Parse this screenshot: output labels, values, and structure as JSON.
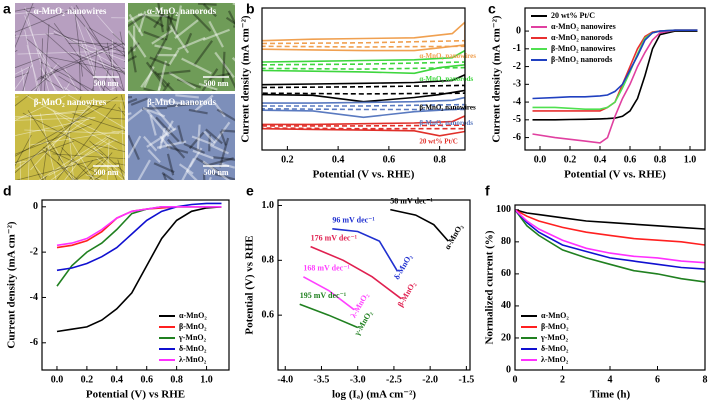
{
  "image_panel": {
    "panel_label": "a",
    "tiles": [
      {
        "label": "α-MnO₂ nanowires",
        "scale_bar": "500 nm",
        "color": "#b79fc0",
        "texture": "wires"
      },
      {
        "label": "α-MnO₂ nanorods",
        "scale_bar": "500 nm",
        "color": "#6f9c58",
        "texture": "rods"
      },
      {
        "label": "β-MnO₂ nanowires",
        "scale_bar": "500 nm",
        "color": "#c9bb45",
        "texture": "wires"
      },
      {
        "label": "β-MnO₂ nanorods",
        "scale_bar": "500 nm",
        "color": "#7d8fba",
        "texture": "rods"
      }
    ]
  },
  "chart_data": [
    {
      "type": "line",
      "panel_label": "b",
      "x_label": "Potential (V vs. RHE)",
      "y_label": "Current density (mA cm⁻²)",
      "xlim": [
        0.1,
        0.9
      ],
      "xticks": [
        0.2,
        0.4,
        0.6,
        0.8
      ],
      "ylim": [
        0,
        10
      ],
      "legend": "inline",
      "series": [
        {
          "name": "α-MnO₂ nanowires",
          "color": "#f0a050",
          "x": [
            0.1,
            0.3,
            0.5,
            0.7,
            0.85,
            0.9,
            0.9,
            0.8,
            0.7,
            0.5,
            0.3,
            0.1
          ],
          "values": [
            7.7,
            7.8,
            7.85,
            7.9,
            8.2,
            9.0,
            7.4,
            7.2,
            7.0,
            7.0,
            7.05,
            7.1
          ]
        },
        {
          "color": "#f0a050",
          "dashed": true,
          "x": [
            0.1,
            0.5,
            0.9,
            0.9,
            0.5,
            0.1
          ],
          "values": [
            7.5,
            7.55,
            7.7,
            7.3,
            7.25,
            7.3
          ]
        },
        {
          "name": "α-MnO₂ nanorods",
          "color": "#3ed63e",
          "x": [
            0.1,
            0.3,
            0.5,
            0.7,
            0.85,
            0.9,
            0.9,
            0.8,
            0.7,
            0.5,
            0.3,
            0.1
          ],
          "values": [
            6.2,
            6.25,
            6.3,
            6.35,
            6.5,
            7.0,
            6.0,
            5.8,
            5.4,
            5.5,
            5.55,
            5.6
          ]
        },
        {
          "color": "#3ed63e",
          "dashed": true,
          "x": [
            0.1,
            0.5,
            0.9,
            0.9,
            0.5,
            0.1
          ],
          "values": [
            6.0,
            6.05,
            6.2,
            5.8,
            5.7,
            5.75
          ]
        },
        {
          "name": "β-MnO₂ nanowires",
          "color": "#000000",
          "x": [
            0.1,
            0.3,
            0.5,
            0.7,
            0.85,
            0.9,
            0.9,
            0.8,
            0.7,
            0.5,
            0.3,
            0.1
          ],
          "values": [
            4.6,
            4.65,
            4.7,
            4.75,
            4.9,
            5.3,
            4.2,
            3.9,
            3.7,
            3.4,
            3.85,
            3.9
          ]
        },
        {
          "color": "#000000",
          "dashed": true,
          "x": [
            0.1,
            0.5,
            0.9,
            0.9,
            0.5,
            0.1
          ],
          "values": [
            4.4,
            4.45,
            4.55,
            4.0,
            3.95,
            4.0
          ]
        },
        {
          "name": "β-MnO₂ nanorods",
          "color": "#5a7ac0",
          "x": [
            0.1,
            0.3,
            0.5,
            0.7,
            0.85,
            0.9,
            0.9,
            0.8,
            0.7,
            0.5,
            0.3,
            0.1
          ],
          "values": [
            3.3,
            3.3,
            3.35,
            3.4,
            3.5,
            3.7,
            2.9,
            2.8,
            2.7,
            2.3,
            2.75,
            2.8
          ]
        },
        {
          "color": "#5a7ac0",
          "dashed": true,
          "x": [
            0.1,
            0.5,
            0.9,
            0.9,
            0.5,
            0.1
          ],
          "values": [
            3.1,
            3.1,
            3.2,
            2.85,
            2.85,
            2.9
          ]
        },
        {
          "name": "20 wt% Pt/C",
          "color": "#e0302a",
          "x": [
            0.1,
            0.3,
            0.5,
            0.7,
            0.85,
            0.9,
            0.9,
            0.8,
            0.7,
            0.5,
            0.3,
            0.1
          ],
          "values": [
            1.8,
            1.8,
            1.85,
            1.9,
            2.0,
            2.4,
            1.3,
            1.0,
            1.35,
            1.4,
            1.45,
            1.5
          ]
        },
        {
          "color": "#e0302a",
          "dashed": true,
          "x": [
            0.1,
            0.5,
            0.9,
            0.9,
            0.5,
            0.1
          ],
          "values": [
            1.7,
            1.7,
            1.75,
            1.5,
            1.5,
            1.55
          ]
        }
      ]
    },
    {
      "type": "line",
      "panel_label": "c",
      "x_label": "Potential (V vs. RHE)",
      "y_label": "Current density (mA cm⁻²)",
      "xlim": [
        -0.1,
        1.1
      ],
      "xticks": [
        {
          "value": 0,
          "label": "0.0"
        },
        0.2,
        0.4,
        0.6,
        0.8,
        {
          "value": 1,
          "label": "1.0"
        }
      ],
      "ylim": [
        -6.7,
        1.3
      ],
      "yticks": [
        -6,
        -5,
        -4,
        -3,
        -2,
        -1,
        0
      ],
      "legend": "upper left",
      "x": [
        -0.05,
        0.1,
        0.2,
        0.3,
        0.4,
        0.45,
        0.5,
        0.55,
        0.6,
        0.65,
        0.7,
        0.75,
        0.8,
        0.9,
        1.05
      ],
      "series": [
        {
          "name": "20 wt% Pt/C",
          "color": "#000000",
          "values": [
            -5.0,
            -5.0,
            -4.98,
            -4.97,
            -4.95,
            -4.93,
            -4.9,
            -4.8,
            -4.5,
            -3.8,
            -2.5,
            -1.0,
            -0.2,
            0,
            0
          ]
        },
        {
          "name": "α-MnO₂ nanowires",
          "color": "#e040a0",
          "values": [
            -5.8,
            -6.0,
            -6.1,
            -6.2,
            -6.3,
            -6.0,
            -4.8,
            -3.8,
            -3.0,
            -2.0,
            -1.2,
            -0.5,
            -0.1,
            0.05,
            0.05
          ]
        },
        {
          "name": "α-MnO₂ nanorods",
          "color": "#e83030",
          "values": [
            -4.5,
            -4.5,
            -4.5,
            -4.5,
            -4.5,
            -4.3,
            -4.0,
            -3.0,
            -2.0,
            -1.0,
            -0.3,
            -0.05,
            0,
            0.05,
            0.05
          ]
        },
        {
          "name": "β-MnO₂ nanowires",
          "color": "#50e050",
          "values": [
            -4.3,
            -4.3,
            -4.35,
            -4.4,
            -4.4,
            -4.3,
            -4.0,
            -3.2,
            -2.3,
            -1.3,
            -0.4,
            -0.1,
            0,
            0.05,
            0.05
          ]
        },
        {
          "name": "β-MnO₂ nanorods",
          "color": "#2040c0",
          "values": [
            -3.8,
            -3.75,
            -3.7,
            -3.7,
            -3.65,
            -3.6,
            -3.4,
            -3.0,
            -2.2,
            -1.4,
            -0.5,
            -0.1,
            0,
            0.05,
            0.05
          ]
        }
      ]
    },
    {
      "type": "line",
      "panel_label": "d",
      "x_label": "Potential (V) vs RHE",
      "y_label": "Current density (mA cm⁻²)",
      "xlim": [
        -0.1,
        1.15
      ],
      "xticks": [
        {
          "value": 0,
          "label": "0.0"
        },
        0.2,
        0.4,
        0.6,
        0.8,
        {
          "value": 1,
          "label": "1.0"
        }
      ],
      "ylim": [
        -7.2,
        0.3
      ],
      "yticks": [
        -6,
        -4,
        -2,
        0
      ],
      "legend": "lower right",
      "x": [
        0,
        0.1,
        0.2,
        0.3,
        0.4,
        0.5,
        0.6,
        0.7,
        0.8,
        0.9,
        1.0,
        1.1
      ],
      "series": [
        {
          "name": "α-MnO₂",
          "color": "#000000",
          "values": [
            -5.5,
            -5.4,
            -5.3,
            -5.0,
            -4.5,
            -3.8,
            -2.6,
            -1.4,
            -0.6,
            -0.2,
            -0.05,
            0
          ]
        },
        {
          "name": "β-MnO₂",
          "color": "#ff2020",
          "values": [
            -1.8,
            -1.7,
            -1.5,
            -1.1,
            -0.5,
            -0.2,
            -0.1,
            -0.05,
            0,
            0,
            0,
            0
          ]
        },
        {
          "name": "γ-MnO₂",
          "color": "#208020",
          "values": [
            -3.5,
            -2.6,
            -2.0,
            -1.6,
            -1.0,
            -0.3,
            -0.1,
            0,
            0,
            0,
            0,
            0
          ]
        },
        {
          "name": "δ-MnO₂",
          "color": "#1010d0",
          "values": [
            -2.8,
            -2.7,
            -2.5,
            -2.2,
            -1.8,
            -1.2,
            -0.6,
            -0.2,
            0,
            0.1,
            0.15,
            0.15
          ]
        },
        {
          "name": "λ-MnO₂",
          "color": "#ff30ff",
          "values": [
            -1.7,
            -1.6,
            -1.4,
            -1.0,
            -0.5,
            -0.2,
            -0.1,
            0,
            0,
            0,
            0,
            0
          ]
        }
      ]
    },
    {
      "type": "line",
      "panel_label": "e",
      "x_label": "log (Iₐ) (mA cm⁻²)",
      "y_label": "Potential (V) vs RHE",
      "xlim": [
        -4.1,
        -1.45
      ],
      "xticks": [
        {
          "value": -4,
          "label": "-4.0"
        },
        -3.5,
        {
          "value": -3,
          "label": "-3.0"
        },
        -2.5,
        {
          "value": -2,
          "label": "-2.0"
        },
        -1.5
      ],
      "ylim": [
        0.4,
        1.02
      ],
      "yticks": [
        0.6,
        0.8,
        {
          "value": 1,
          "label": "1.0"
        }
      ],
      "legend": "inline",
      "series": [
        {
          "name": "α-MnO₂",
          "slope_label": "58 mV dec⁻¹",
          "color": "#000000",
          "x": [
            -2.55,
            -2.2,
            -1.95,
            -1.75
          ],
          "values": [
            0.985,
            0.965,
            0.93,
            0.87
          ]
        },
        {
          "name": "δ-MnO₂",
          "slope_label": "96 mV dec⁻¹",
          "color": "#2030d0",
          "x": [
            -3.35,
            -3.0,
            -2.7,
            -2.45
          ],
          "values": [
            0.915,
            0.905,
            0.87,
            0.76
          ]
        },
        {
          "name": "β-MnO₂",
          "slope_label": "176 mV dec⁻¹",
          "color": "#e02050",
          "x": [
            -3.65,
            -3.2,
            -2.8,
            -2.4
          ],
          "values": [
            0.85,
            0.8,
            0.74,
            0.66
          ]
        },
        {
          "name": "λ-MnO₂",
          "slope_label": "168 mV dec⁻¹",
          "color": "#ff40ff",
          "x": [
            -3.75,
            -3.4,
            -3.05
          ],
          "values": [
            0.74,
            0.69,
            0.62
          ]
        },
        {
          "name": "γ-MnO₂",
          "slope_label": "195 mV dec⁻¹",
          "color": "#208020",
          "x": [
            -3.8,
            -3.4,
            -3.0
          ],
          "values": [
            0.64,
            0.6,
            0.555
          ]
        }
      ]
    },
    {
      "type": "line",
      "panel_label": "f",
      "x_label": "Time (h)",
      "y_label": "Normalized current (%)",
      "xlim": [
        0,
        8
      ],
      "xticks": [
        0,
        2,
        4,
        6,
        8
      ],
      "ylim": [
        0,
        103
      ],
      "yticks": [
        0,
        20,
        40,
        60,
        80,
        100
      ],
      "legend": "lower left",
      "x": [
        0,
        0.5,
        1,
        2,
        3,
        4,
        5,
        6,
        7,
        8
      ],
      "series": [
        {
          "name": "α-MnO₂",
          "color": "#000000",
          "values": [
            100,
            98,
            97,
            95,
            93,
            92,
            91,
            90,
            89,
            88
          ]
        },
        {
          "name": "β-MnO₂",
          "color": "#ff2020",
          "values": [
            100,
            96,
            93,
            89,
            86,
            84,
            82,
            81,
            80,
            78
          ]
        },
        {
          "name": "γ-MnO₂",
          "color": "#208020",
          "values": [
            100,
            90,
            84,
            75,
            70,
            66,
            62,
            60,
            57,
            55
          ]
        },
        {
          "name": "δ-MnO₂",
          "color": "#1010d0",
          "values": [
            100,
            92,
            86,
            78,
            74,
            70,
            68,
            66,
            64,
            63
          ]
        },
        {
          "name": "λ-MnO₂",
          "color": "#ff30ff",
          "values": [
            100,
            93,
            88,
            81,
            76,
            73,
            71,
            70,
            68,
            67
          ]
        }
      ]
    }
  ]
}
